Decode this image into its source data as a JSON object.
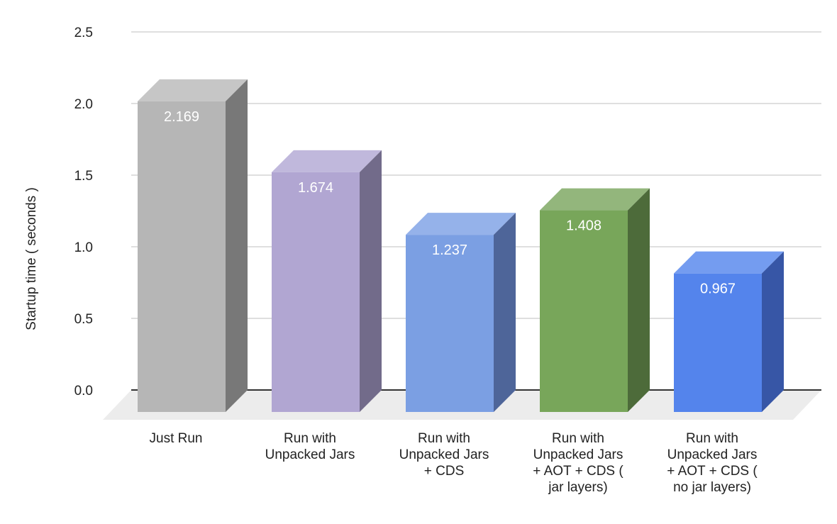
{
  "chart_data": {
    "type": "bar",
    "style": "3d",
    "title": "",
    "xlabel": "",
    "ylabel": "Startup time ( seconds )",
    "ylim": [
      0,
      2.5
    ],
    "yticks": [
      "0.0",
      "0.5",
      "1.0",
      "1.5",
      "2.0",
      "2.5"
    ],
    "grid": true,
    "legend": "none",
    "categories": [
      [
        "Just Run"
      ],
      [
        "Run with",
        "Unpacked Jars"
      ],
      [
        "Run with",
        "Unpacked Jars",
        "+ CDS"
      ],
      [
        "Run with",
        "Unpacked Jars",
        "+ AOT + CDS (",
        "jar layers)"
      ],
      [
        "Run with",
        "Unpacked Jars",
        "+ AOT + CDS (",
        "no jar layers)"
      ]
    ],
    "values": [
      2.169,
      1.674,
      1.237,
      1.408,
      0.967
    ],
    "data_labels": [
      "2.169",
      "1.674",
      "1.237",
      "1.408",
      "0.967"
    ],
    "colors": [
      {
        "front": "#b6b6b6",
        "top": "#c6c6c6",
        "side": "#787878"
      },
      {
        "front": "#b1a6d2",
        "top": "#c0b8dc",
        "side": "#726b8a"
      },
      {
        "front": "#7b9fe3",
        "top": "#95b2ea",
        "side": "#4e6599"
      },
      {
        "front": "#78a65a",
        "top": "#93b67c",
        "side": "#4d6b3a"
      },
      {
        "front": "#5484ec",
        "top": "#749cf0",
        "side": "#3756a6"
      }
    ]
  }
}
